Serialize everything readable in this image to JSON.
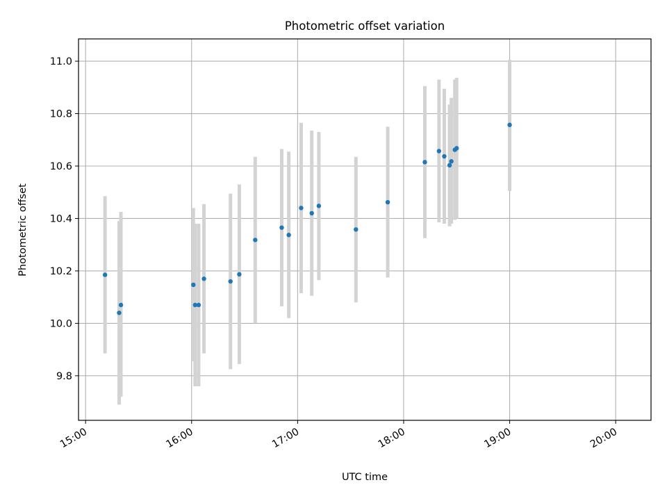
{
  "chart_data": {
    "type": "scatter",
    "title": "Photometric offset variation",
    "xlabel": "UTC time",
    "ylabel": "Photometric offset",
    "x_ticks": [
      "15:00",
      "16:00",
      "17:00",
      "18:00",
      "19:00",
      "20:00"
    ],
    "y_ticks": [
      "9.8",
      "10.0",
      "10.2",
      "10.4",
      "10.6",
      "10.8",
      "11.0"
    ],
    "xlim": [
      "14:56",
      "20:20"
    ],
    "ylim": [
      9.63,
      11.085
    ],
    "grid": true,
    "colors": {
      "point": "#1f77b4",
      "errorbar": "#d3d3d3",
      "grid": "#b0b0b0"
    },
    "series": [
      {
        "points": [
          {
            "x": "15:11",
            "y": 10.185,
            "lo": 9.885,
            "hi": 10.485
          },
          {
            "x": "15:19",
            "y": 10.04,
            "lo": 9.69,
            "hi": 10.39
          },
          {
            "x": "15:20",
            "y": 10.07,
            "lo": 9.72,
            "hi": 10.425
          },
          {
            "x": "16:01",
            "y": 10.147,
            "lo": 9.855,
            "hi": 10.44
          },
          {
            "x": "16:02",
            "y": 10.07,
            "lo": 9.76,
            "hi": 10.38
          },
          {
            "x": "16:04",
            "y": 10.07,
            "lo": 9.76,
            "hi": 10.38
          },
          {
            "x": "16:07",
            "y": 10.17,
            "lo": 9.885,
            "hi": 10.455
          },
          {
            "x": "16:22",
            "y": 10.16,
            "lo": 9.825,
            "hi": 10.495
          },
          {
            "x": "16:27",
            "y": 10.187,
            "lo": 9.845,
            "hi": 10.53
          },
          {
            "x": "16:36",
            "y": 10.318,
            "lo": 10.0,
            "hi": 10.635
          },
          {
            "x": "16:51",
            "y": 10.365,
            "lo": 10.065,
            "hi": 10.665
          },
          {
            "x": "16:55",
            "y": 10.337,
            "lo": 10.02,
            "hi": 10.655
          },
          {
            "x": "17:02",
            "y": 10.44,
            "lo": 10.115,
            "hi": 10.765
          },
          {
            "x": "17:08",
            "y": 10.42,
            "lo": 10.105,
            "hi": 10.735
          },
          {
            "x": "17:12",
            "y": 10.448,
            "lo": 10.165,
            "hi": 10.73
          },
          {
            "x": "17:33",
            "y": 10.358,
            "lo": 10.08,
            "hi": 10.635
          },
          {
            "x": "17:51",
            "y": 10.462,
            "lo": 10.175,
            "hi": 10.75
          },
          {
            "x": "18:12",
            "y": 10.615,
            "lo": 10.325,
            "hi": 10.905
          },
          {
            "x": "18:20",
            "y": 10.657,
            "lo": 10.385,
            "hi": 10.93
          },
          {
            "x": "18:23",
            "y": 10.637,
            "lo": 10.38,
            "hi": 10.895
          },
          {
            "x": "18:26",
            "y": 10.603,
            "lo": 10.37,
            "hi": 10.835
          },
          {
            "x": "18:27",
            "y": 10.618,
            "lo": 10.38,
            "hi": 10.86
          },
          {
            "x": "18:29",
            "y": 10.662,
            "lo": 10.395,
            "hi": 10.93
          },
          {
            "x": "18:30",
            "y": 10.668,
            "lo": 10.4,
            "hi": 10.937
          },
          {
            "x": "18:60",
            "y": 10.757,
            "lo": 10.505,
            "hi": 11.005
          }
        ]
      }
    ]
  }
}
